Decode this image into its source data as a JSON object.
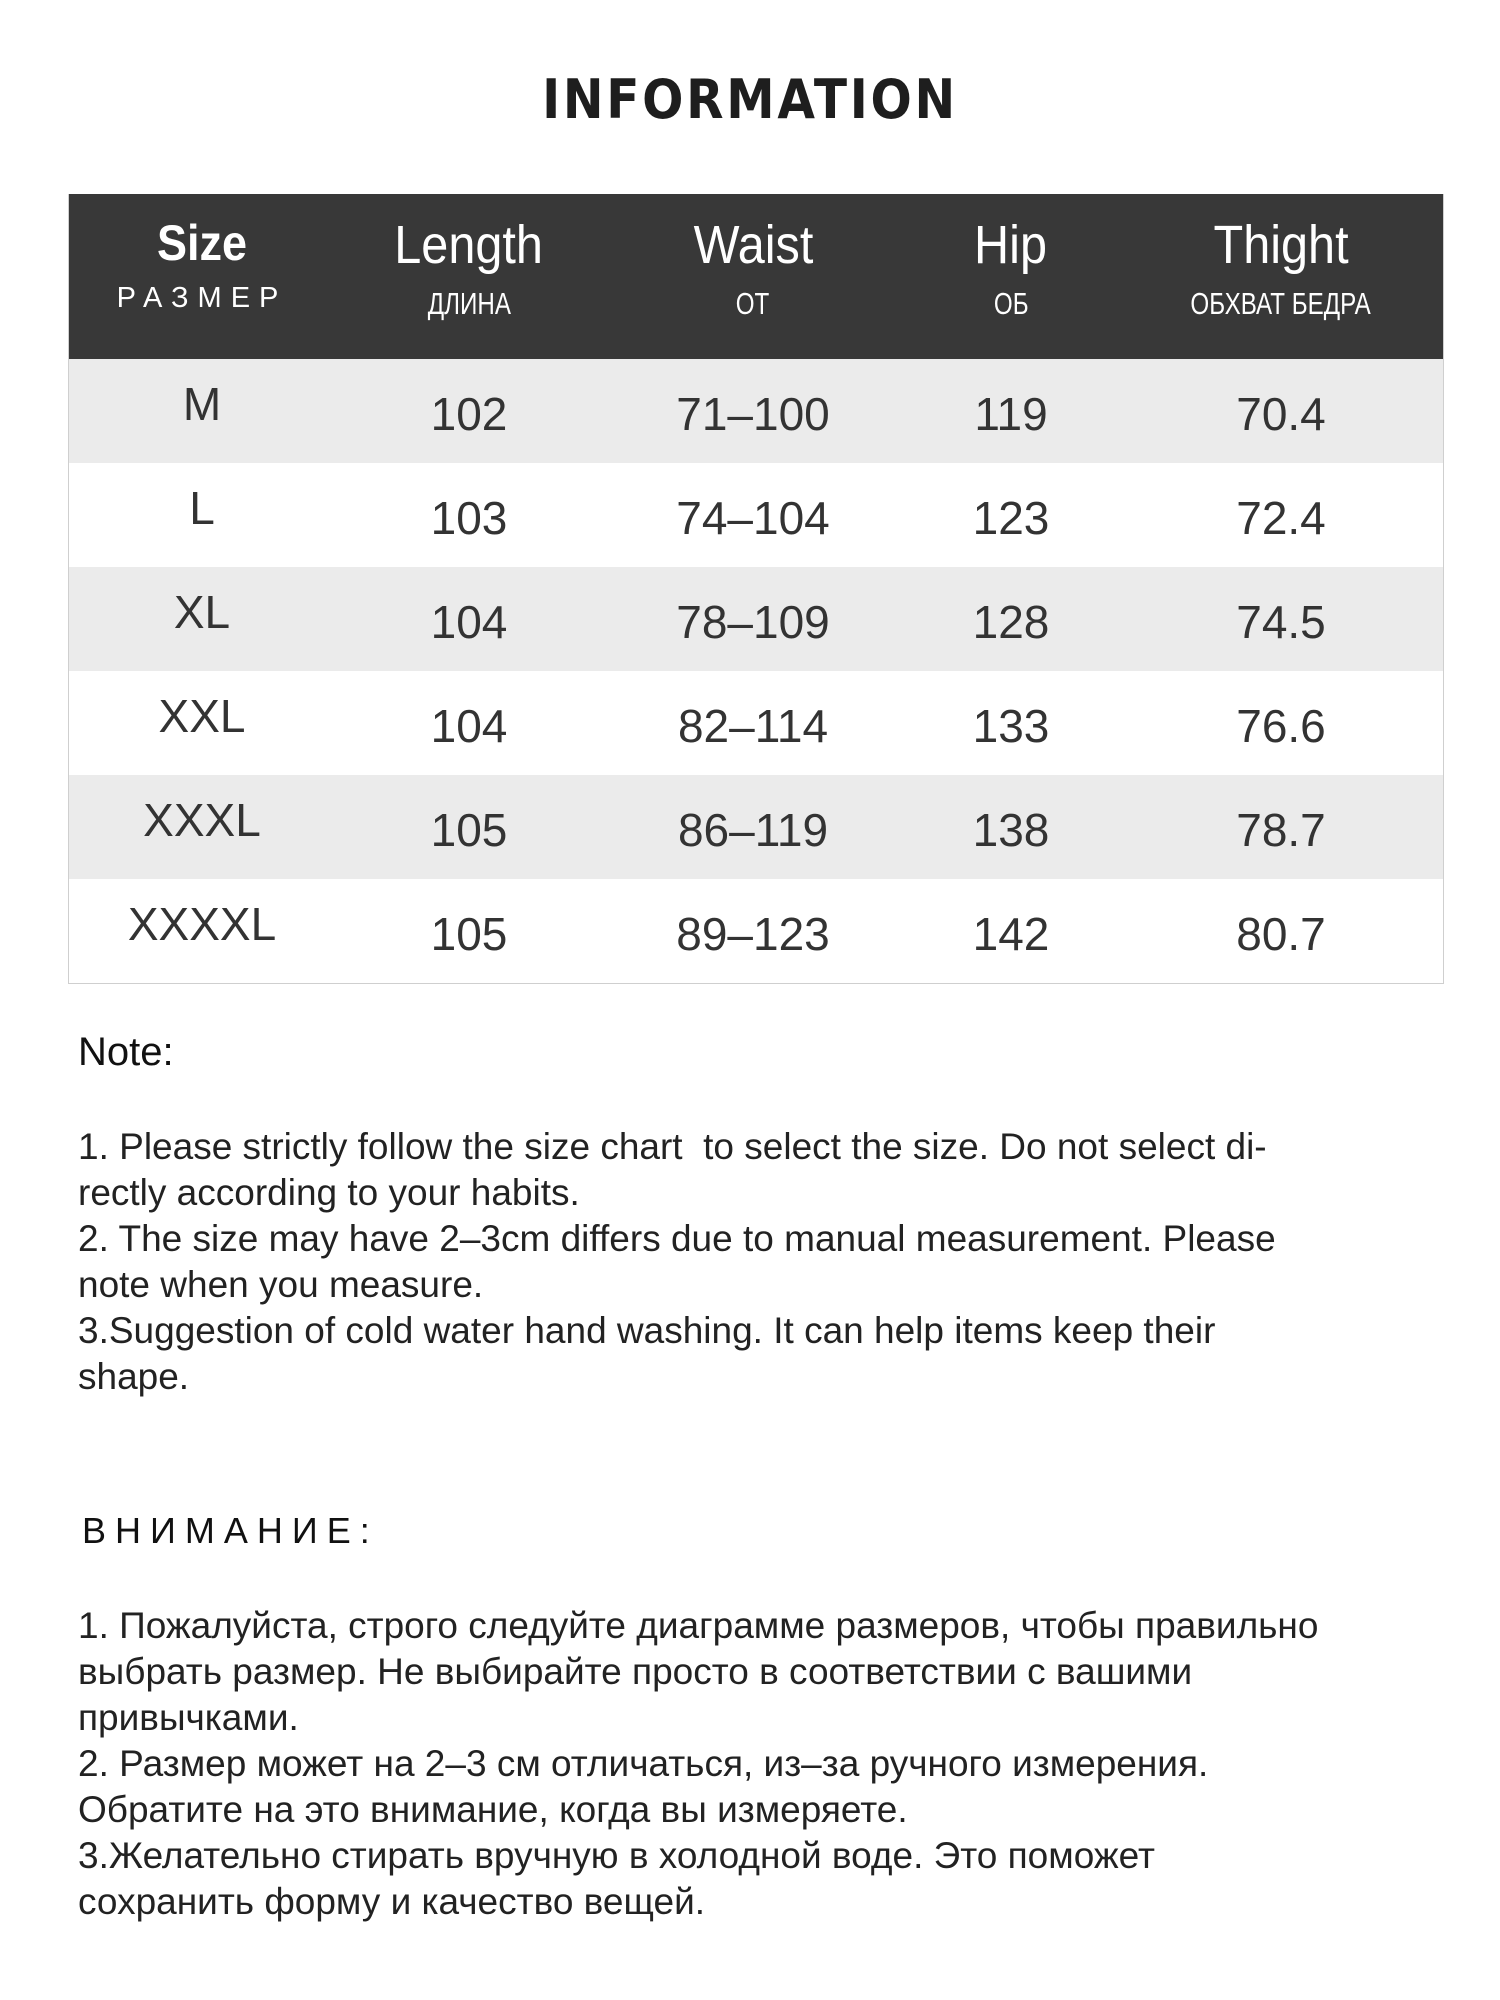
{
  "title": "INFORMATION",
  "table": {
    "headers": [
      {
        "en": "Size",
        "ru": "РАЗМЕР"
      },
      {
        "en": "Length",
        "ru": "ДЛИНА"
      },
      {
        "en": "Waist",
        "ru": "ОТ"
      },
      {
        "en": "Hip",
        "ru": "ОБ"
      },
      {
        "en": "Thight",
        "ru": "ОБХВАТ БЕДРА"
      }
    ],
    "rows": [
      [
        "M",
        "102",
        "71–100",
        "119",
        "70.4"
      ],
      [
        "L",
        "103",
        "74–104",
        "123",
        "72.4"
      ],
      [
        "XL",
        "104",
        "78–109",
        "128",
        "74.5"
      ],
      [
        "XXL",
        "104",
        "82–114",
        "133",
        "76.6"
      ],
      [
        "XXXL",
        "105",
        "86–119",
        "138",
        "78.7"
      ],
      [
        "XXXXL",
        "105",
        "89–123",
        "142",
        "80.7"
      ]
    ]
  },
  "note": {
    "heading": "Note:",
    "lines": [
      "1. Please strictly follow the size chart  to select the size. Do not select di-",
      "rectly according to your habits.",
      "2. The size may have 2–3cm differs due to manual measurement. Please",
      "note when you measure.",
      "3.Suggestion of cold water hand washing. It can help items keep their",
      "shape."
    ]
  },
  "note_ru": {
    "heading": "ВНИМАНИЕ:",
    "lines": [
      "1. Пожалуйста, строго следуйте диаграмме размеров, чтобы правильно",
      "выбрать размер. Не выбирайте просто в соответствии с вашими",
      "привычками.",
      "2. Размер может на 2–3 см отличаться, из–за ручного измерения.",
      "Обратите на это внимание, когда вы измеряете.",
      "3.Желательно стирать вручную в холодной воде. Это поможет",
      "сохранить форму и качество вещей."
    ]
  }
}
